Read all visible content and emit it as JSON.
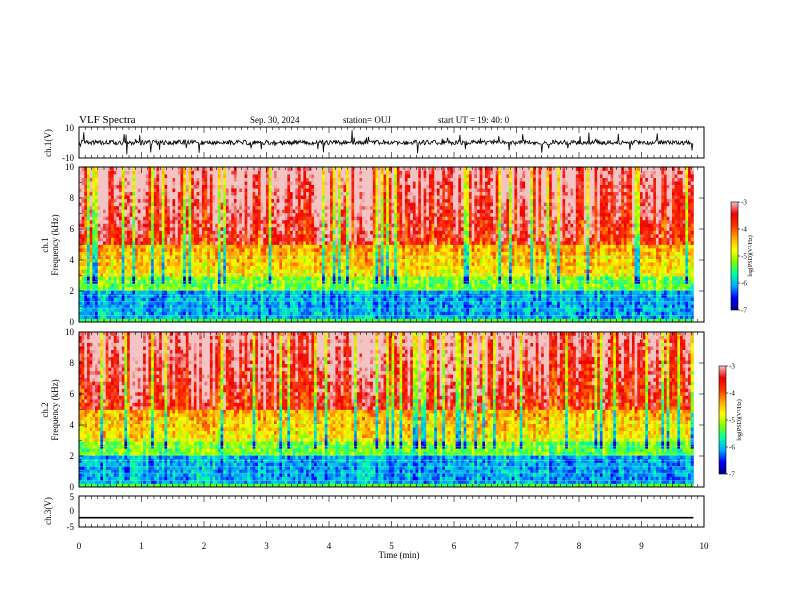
{
  "header": {
    "title": "VLF Spectra",
    "date": "Sep. 30, 2024",
    "station": "station= OUJ",
    "start": "start  UT  =   19: 40: 0"
  },
  "chart_data": [
    {
      "type": "line",
      "name": "ch1-waveform",
      "ylabel": "ch.1(V)",
      "ylim": [
        -10,
        10
      ],
      "yticks": [
        "10",
        "-10"
      ],
      "x_range": [
        0,
        10
      ],
      "data_end": 9.83,
      "description_values": {
        "baseline": 0,
        "spread": 1.5
      }
    },
    {
      "type": "heatmap",
      "name": "ch1-spectrogram",
      "ylabel": "Frequency  (kHz)",
      "channel": "ch.1",
      "ylim": [
        0,
        10
      ],
      "yticks": [
        "0",
        "2",
        "4",
        "6",
        "8",
        "10"
      ],
      "x_range": [
        0,
        10
      ],
      "data_end": 9.83,
      "colorbar": {
        "label": "log(PSD)(V²/Hz)",
        "range": [
          -7,
          -3
        ],
        "ticks": [
          "-3",
          "-4",
          "-5",
          "-6",
          "-7"
        ]
      }
    },
    {
      "type": "heatmap",
      "name": "ch2-spectrogram",
      "ylabel": "Frequency  (kHz)",
      "channel": "ch.2",
      "ylim": [
        0,
        10
      ],
      "yticks": [
        "0",
        "2",
        "4",
        "6",
        "8",
        "10"
      ],
      "x_range": [
        0,
        10
      ],
      "data_end": 9.83,
      "colorbar": {
        "label": "log(PSD)(V²/Hz)",
        "range": [
          -7,
          -3
        ],
        "ticks": [
          "-3",
          "-4",
          "-5",
          "-6",
          "-7"
        ]
      }
    },
    {
      "type": "line",
      "name": "ch3-waveform",
      "ylabel": "ch.3(V)",
      "ylim": [
        -5,
        5
      ],
      "yticks": [
        "5",
        "0",
        "-5"
      ],
      "x_range": [
        0,
        10
      ],
      "data_end": 9.83,
      "value": -2
    }
  ],
  "xaxis": {
    "label": "Time  (min)",
    "ticks": [
      "0",
      "1",
      "2",
      "3",
      "4",
      "5",
      "6",
      "7",
      "8",
      "9",
      "10"
    ]
  },
  "colors": {
    "spectrogram_scale": [
      "#00007f",
      "#0000ff",
      "#00aaff",
      "#00ffaa",
      "#7fff00",
      "#ffff00",
      "#ffaa00",
      "#ff3300",
      "#ee0000",
      "#f4c4c4"
    ]
  }
}
